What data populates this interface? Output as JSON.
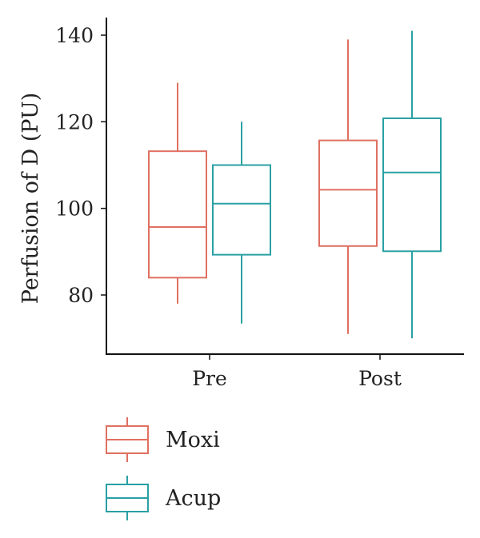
{
  "chart_data": {
    "type": "boxplot",
    "categories": [
      "Pre",
      "Post"
    ],
    "ylabel": "Perfusion of D (PU)",
    "xlabel": "",
    "ylim": [
      66,
      143
    ],
    "yticks": [
      80,
      100,
      120,
      140
    ],
    "grid": false,
    "legend_position": "bottom-left",
    "series": [
      {
        "name": "Moxi",
        "color": "#E07061",
        "boxes": [
          {
            "min": 78,
            "q1": 84,
            "median": 95.7,
            "q3": 113.2,
            "max": 129
          },
          {
            "min": 71,
            "q1": 91.3,
            "median": 104.3,
            "q3": 115.7,
            "max": 139
          }
        ]
      },
      {
        "name": "Acup",
        "color": "#2AA0A4",
        "boxes": [
          {
            "min": 73.4,
            "q1": 89.3,
            "median": 101.1,
            "q3": 110,
            "max": 120
          },
          {
            "min": 70,
            "q1": 90.1,
            "median": 108.3,
            "q3": 120.8,
            "max": 141
          }
        ]
      }
    ]
  }
}
